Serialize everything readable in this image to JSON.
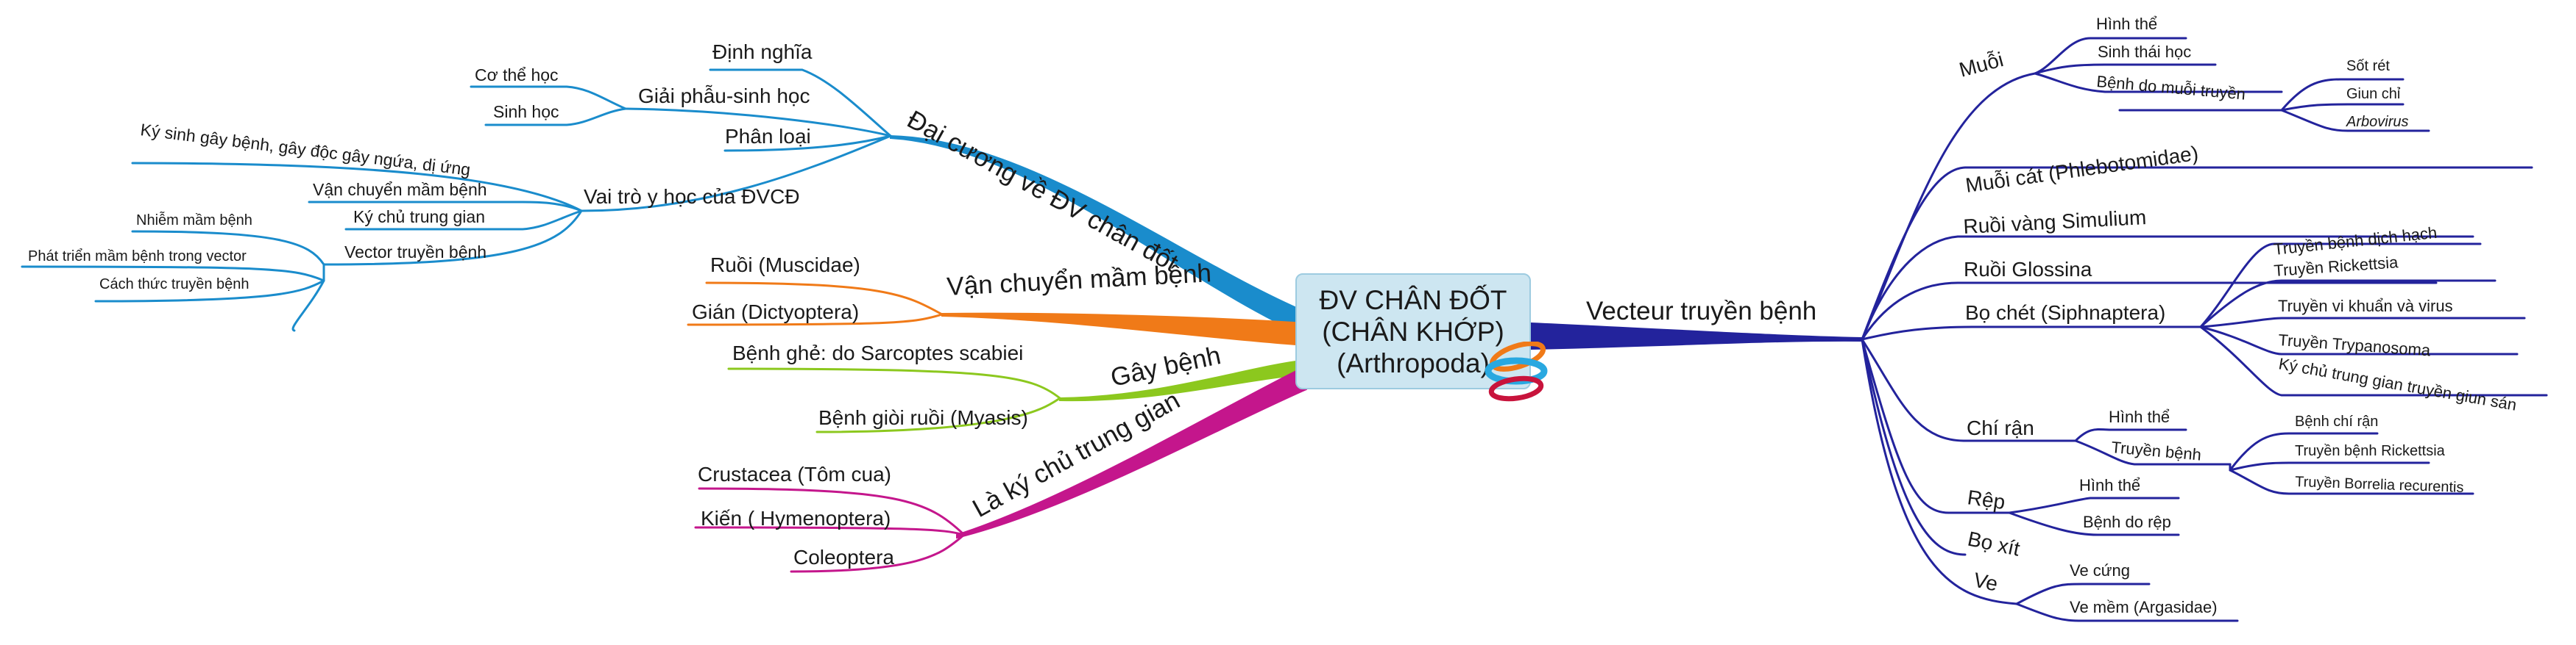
{
  "root": {
    "lines": [
      "ĐV CHÂN ĐỐT",
      "(CHÂN KHỚP)",
      "(Arthropoda)"
    ]
  },
  "colors": {
    "blue": "#1a8ccc",
    "orange": "#f07a18",
    "green": "#8cc81e",
    "magenta": "#c4168c",
    "navy": "#23239c"
  },
  "branches": {
    "dai_cuong": {
      "label": "Đại cương về ĐV chân đốt",
      "dinh_nghia": "Định nghĩa",
      "giai_phau": {
        "label": "Giải phẫu-sinh học",
        "co_the_hoc": "Cơ thể học",
        "sinh_hoc": "Sinh học"
      },
      "phan_loai": "Phân loại",
      "vai_tro": {
        "label": "Vai trò y học của ĐVCĐ",
        "ky_sinh": "Ký sinh gây bệnh, gây độc gây ngứa, dị ứng",
        "van_chuyen": "Vận chuyển mầm bệnh",
        "ky_chu": "Ký chủ trung gian",
        "vector": {
          "label": "Vector truyền bệnh",
          "nhiem": "Nhiễm mầm bệnh",
          "phat_trien": "Phát triển mầm bệnh trong vector",
          "cach_thuc": "Cách thức truyền bệnh"
        }
      }
    },
    "van_chuyen": {
      "label": "Vận chuyển mầm bệnh",
      "ruoi": "Ruồi (Muscidae)",
      "gian": "Gián (Dictyoptera)"
    },
    "gay_benh": {
      "label": "Gây bệnh",
      "ghe": "Bệnh ghẻ: do Sarcoptes scabiei",
      "gioi_ruoi": "Bệnh giòi ruồi (Myasis)"
    },
    "ky_chu": {
      "label": "Là ký chủ trung gian",
      "crustacea": "Crustacea (Tôm cua)",
      "kien": "Kiến ( Hymenoptera)",
      "coleoptera": "Coleoptera"
    },
    "vecteur": {
      "label": "Vecteur truyền bệnh",
      "muoi": {
        "label": "Muỗi",
        "hinh_the": "Hình thể",
        "sinh_thai": "Sinh thái học",
        "benh": {
          "label": "Bệnh do muỗi truyền",
          "sot_ret": "Sốt rét",
          "giun_chi": "Giun chỉ",
          "arbovirus": "Arbovirus"
        }
      },
      "muoi_cat": "Muỗi cát (Phlebotomidae)",
      "ruoi_vang": "Ruồi vàng Simulium",
      "ruoi_glossina": "Ruồi Glossina",
      "bo_chet": {
        "label": "Bọ chét (Siphnaptera)",
        "dich_hach": "Truyền bệnh dịch hạch",
        "rickettsia": "Truyền Rickettsia",
        "vi_khuan": "Truyền vi khuẩn và virus",
        "trypanosoma": "Truyền Trypanosoma",
        "giun_san": "Ký chủ trung gian truyền giun sán"
      },
      "chi_ran": {
        "label": "Chí rận",
        "hinh_the": "Hình thể",
        "truyen_benh": {
          "label": "Truyền bệnh",
          "benh_chi_ran": "Bệnh chí rận",
          "rickettsia": "Truyền bệnh Rickettsia",
          "borrelia": "Truyền Borrelia recurentis"
        }
      },
      "rep": {
        "label": "Rệp",
        "hinh_the": "Hình thể",
        "benh": "Bệnh do rệp"
      },
      "bo_xit": "Bọ xít",
      "ve": {
        "label": "Ve",
        "ve_cung": "Ve cứng",
        "ve_mem": "Ve mềm (Argasidae)"
      }
    }
  }
}
